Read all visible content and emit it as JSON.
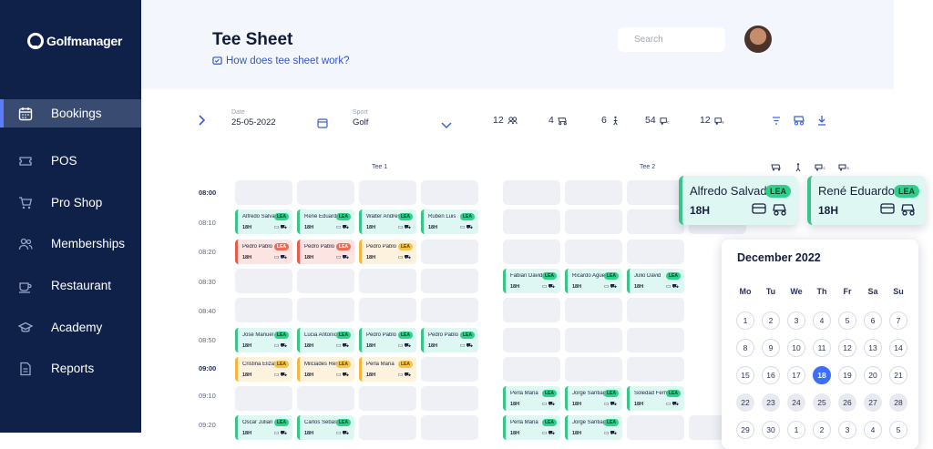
{
  "app": {
    "name": "Golfmanager"
  },
  "sidebar": {
    "items": [
      {
        "label": "Bookings",
        "icon": "calendar-icon",
        "active": true
      },
      {
        "label": "POS",
        "icon": "ticket-icon"
      },
      {
        "label": "Pro Shop",
        "icon": "cart-icon"
      },
      {
        "label": "Memberships",
        "icon": "users-icon"
      },
      {
        "label": "Restaurant",
        "icon": "cup-icon"
      },
      {
        "label": "Academy",
        "icon": "graduation-cap-icon"
      },
      {
        "label": "Reports",
        "icon": "document-icon"
      }
    ]
  },
  "header": {
    "title": "Tee Sheet",
    "help": "How does tee sheet work?",
    "search_placeholder": "Search"
  },
  "toolbar": {
    "date_label": "Date",
    "date_value": "25-05-2022",
    "sport_label": "Sport",
    "sport_value": "Golf",
    "stats": [
      {
        "value": "12",
        "icon": "players-icon"
      },
      {
        "value": "4",
        "icon": "cart-icon"
      },
      {
        "value": "6",
        "icon": "walker-icon"
      },
      {
        "value": "54",
        "icon": "buggy-c-icon"
      },
      {
        "value": "12",
        "icon": "buggy-s-icon"
      }
    ]
  },
  "tees": {
    "tee1": "Tee 1",
    "tee2": "Tee 2"
  },
  "times": [
    "08:00",
    "08:10",
    "08:20",
    "08:30",
    "08:40",
    "08:50",
    "09:00",
    "09:10",
    "09:20"
  ],
  "bookings": [
    {
      "name": "Alfredo Salvador",
      "badge": "LEA",
      "holes": "18H",
      "color": "green"
    },
    {
      "name": "René Eduardo",
      "badge": "LEA",
      "holes": "18H",
      "color": "green"
    },
    {
      "name": "Walter Andres",
      "badge": "LEA",
      "holes": "18H",
      "color": "green"
    },
    {
      "name": "Ruben Luis",
      "badge": "LEA",
      "holes": "18H",
      "color": "green"
    },
    {
      "name": "Pedro Pablo",
      "badge": "LEA",
      "holes": "18H",
      "color": "red"
    },
    {
      "name": "Pedro Pablo",
      "badge": "LEA",
      "holes": "18H",
      "color": "red"
    },
    {
      "name": "Pedro Pablo",
      "badge": "LEA",
      "holes": "18H",
      "color": "yellow"
    },
    {
      "name": "Fabian David",
      "badge": "LEA",
      "holes": "18H",
      "color": "green"
    },
    {
      "name": "Ricardo Aguero",
      "badge": "LEA",
      "holes": "18H",
      "color": "green"
    },
    {
      "name": "Julio David",
      "badge": "LEA",
      "holes": "18H",
      "color": "green"
    },
    {
      "name": "José Manuel",
      "badge": "LEA",
      "holes": "18H",
      "color": "green"
    },
    {
      "name": "Lucia Antonio",
      "badge": "LEA",
      "holes": "18H",
      "color": "green"
    },
    {
      "name": "Pedro Pablo",
      "badge": "LEA",
      "holes": "18H",
      "color": "green"
    },
    {
      "name": "Pedro Pablo",
      "badge": "LEA",
      "holes": "18H",
      "color": "green"
    },
    {
      "name": "Cristina Elizabeth",
      "badge": "LEA",
      "holes": "18H",
      "color": "yellow"
    },
    {
      "name": "Milciades Renato",
      "badge": "LEA",
      "holes": "18H",
      "color": "yellow"
    },
    {
      "name": "Perla Maria",
      "badge": "LEA",
      "holes": "18H",
      "color": "yellow"
    },
    {
      "name": "Perla Maria",
      "badge": "LEA",
      "holes": "18H",
      "color": "green"
    },
    {
      "name": "Jorge Santiago",
      "badge": "LEA",
      "holes": "18H",
      "color": "green"
    },
    {
      "name": "Soledad Fernanda",
      "badge": "LEA",
      "holes": "18H",
      "color": "green"
    },
    {
      "name": "Walter Andres",
      "badge": "LEA",
      "holes": "18H",
      "color": "green"
    },
    {
      "name": "Oscar Julian",
      "badge": "LEA",
      "holes": "18H",
      "color": "green"
    },
    {
      "name": "Carlos Sebastian",
      "badge": "LEA",
      "holes": "18H",
      "color": "green"
    },
    {
      "name": "Perla Maria",
      "badge": "LEA",
      "holes": "18H",
      "color": "green"
    },
    {
      "name": "Jorge Santiago",
      "badge": "LEA",
      "holes": "18H",
      "color": "green"
    }
  ],
  "featured": [
    {
      "name": "Alfredo Salvador",
      "badge": "LEA",
      "holes": "18H"
    },
    {
      "name": "René Eduardo",
      "badge": "LEA",
      "holes": "18H"
    }
  ],
  "calendar": {
    "title": "December 2022",
    "weekdays": [
      "Mo",
      "Tu",
      "We",
      "Th",
      "Fr",
      "Sa",
      "Su"
    ],
    "days": [
      "1",
      "2",
      "3",
      "4",
      "5",
      "6",
      "7",
      "8",
      "9",
      "10",
      "11",
      "12",
      "13",
      "14",
      "15",
      "16",
      "17",
      "18",
      "19",
      "20",
      "21",
      "22",
      "23",
      "24",
      "25",
      "26",
      "27",
      "28",
      "29",
      "30",
      "1",
      "2",
      "3",
      "4",
      "5"
    ],
    "selected": "18"
  },
  "colors": {
    "sidebar": "#0f2149",
    "accent": "#3b6ff5",
    "green": "#2fd18a",
    "red": "#ef6a55",
    "yellow": "#f6c548"
  }
}
